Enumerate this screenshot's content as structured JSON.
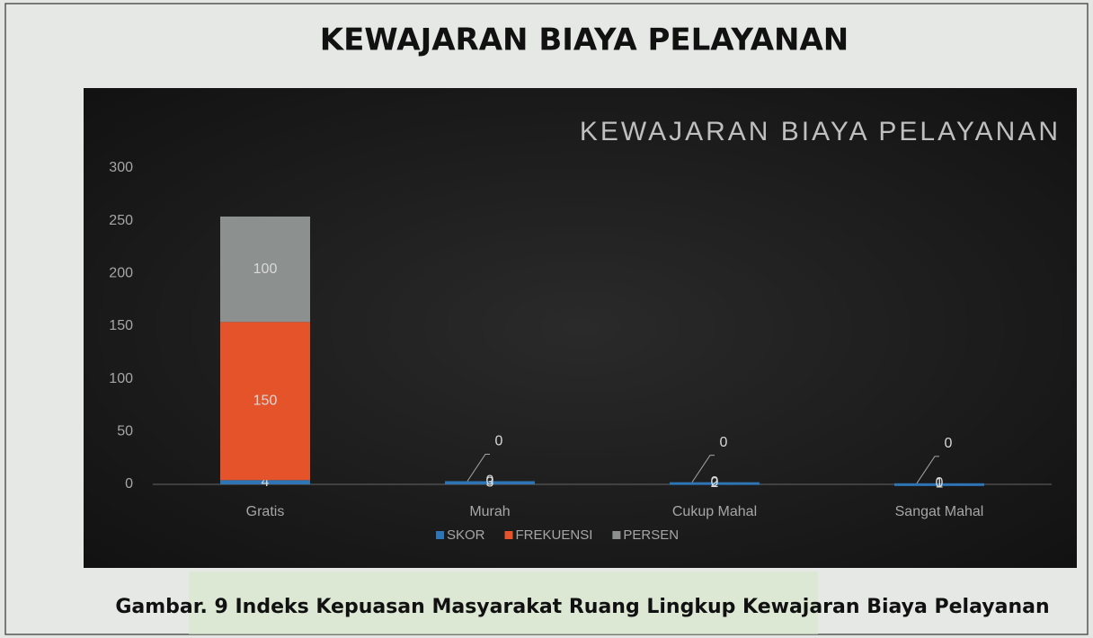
{
  "header": {
    "title": "KEWAJARAN BIAYA PELAYANAN"
  },
  "chart_data": {
    "type": "stacked_bar",
    "title": "KEWAJARAN BIAYA PELAYANAN",
    "categories": [
      "Gratis",
      "Murah",
      "Cukup Mahal",
      "Sangat Mahal"
    ],
    "series": [
      {
        "name": "SKOR",
        "color": "#2e75b6",
        "values": [
          4,
          3,
          2,
          1
        ]
      },
      {
        "name": "FREKUENSI",
        "color": "#e5532a",
        "values": [
          150,
          0,
          0,
          0
        ]
      },
      {
        "name": "PERSEN",
        "color": "#8c918f",
        "values": [
          100,
          0,
          0,
          0
        ]
      }
    ],
    "ylim": [
      0,
      300
    ],
    "yticks": [
      0,
      50,
      100,
      150,
      200,
      250,
      300
    ],
    "grid": false,
    "legend": "bottom"
  },
  "caption": "Gambar. 9 Indeks Kepuasan Masyarakat Ruang Lingkup Kewajaran Biaya Pelayanan"
}
